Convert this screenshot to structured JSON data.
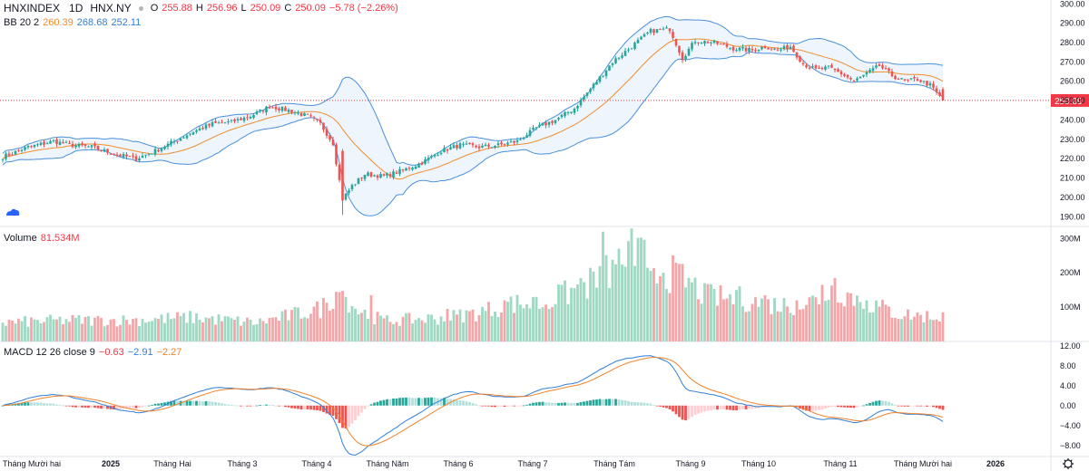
{
  "header": {
    "symbol": "HNXINDEX",
    "interval": "1D",
    "exchange": "HNX.NY",
    "o_label": "O",
    "o": "255.88",
    "h_label": "H",
    "h": "256.96",
    "l_label": "L",
    "l": "250.09",
    "c_label": "C",
    "c": "250.09",
    "change": "−5.78 (−2.26%)"
  },
  "bb_legend": {
    "name": "BB 20 2",
    "basis": "260.39",
    "upper": "268.68",
    "lower": "252.11"
  },
  "volume_legend": {
    "name": "Volume",
    "value": "81.534M"
  },
  "macd_legend": {
    "name": "MACD 12 26 close 9",
    "hist": "−0.63",
    "macd": "−2.91",
    "signal": "−2.27"
  },
  "last_price_label": "250.09",
  "colors": {
    "up": "#26a69a",
    "down": "#ef5350",
    "volume_up": "#9fd8c3",
    "volume_down": "#f5a5a8",
    "bb_band": "#4a90d9",
    "bb_basis": "#f08c2e",
    "macd": "#2f7fd8",
    "signal": "#f0822a",
    "last_price": "#f23645"
  },
  "chart_data": [
    {
      "type": "candlestick",
      "name": "HNXINDEX 1D",
      "ylim": [
        185,
        302
      ],
      "yticks": [
        "300.00",
        "290.00",
        "280.00",
        "270.00",
        "260.00",
        "250.00",
        "240.00",
        "230.00",
        "220.00",
        "210.00",
        "200.00",
        "190.00"
      ],
      "xticks": [
        "Tháng Mười hai",
        "2025",
        "Tháng Hai",
        "Tháng 3",
        "Tháng 4",
        "Tháng Năm",
        "Tháng 6",
        "Tháng 7",
        "Tháng Tám",
        "Tháng 9",
        "Tháng 10",
        "Tháng 11",
        "Tháng Mười hai",
        "2026"
      ],
      "anchors_close": [
        [
          0,
          221
        ],
        [
          8,
          226
        ],
        [
          16,
          229
        ],
        [
          22,
          227
        ],
        [
          28,
          226
        ],
        [
          36,
          222
        ],
        [
          42,
          220
        ],
        [
          48,
          224
        ],
        [
          54,
          229
        ],
        [
          60,
          234
        ],
        [
          66,
          238
        ],
        [
          72,
          239
        ],
        [
          78,
          242
        ],
        [
          84,
          247
        ],
        [
          90,
          245
        ],
        [
          96,
          242
        ],
        [
          100,
          238
        ],
        [
          104,
          228
        ],
        [
          107,
          199
        ],
        [
          110,
          206
        ],
        [
          114,
          212
        ],
        [
          120,
          211
        ],
        [
          126,
          214
        ],
        [
          132,
          218
        ],
        [
          138,
          224
        ],
        [
          144,
          227
        ],
        [
          150,
          226
        ],
        [
          156,
          227
        ],
        [
          162,
          229
        ],
        [
          168,
          236
        ],
        [
          174,
          240
        ],
        [
          180,
          246
        ],
        [
          186,
          258
        ],
        [
          192,
          270
        ],
        [
          198,
          278
        ],
        [
          204,
          286
        ],
        [
          210,
          287
        ],
        [
          214,
          272
        ],
        [
          218,
          281
        ],
        [
          224,
          280
        ],
        [
          230,
          277
        ],
        [
          236,
          276
        ],
        [
          240,
          278
        ],
        [
          244,
          276
        ],
        [
          248,
          278
        ],
        [
          252,
          269
        ],
        [
          256,
          266
        ],
        [
          260,
          267
        ],
        [
          264,
          264
        ],
        [
          268,
          260
        ],
        [
          272,
          264
        ],
        [
          276,
          268
        ],
        [
          280,
          263
        ],
        [
          284,
          260
        ],
        [
          288,
          261
        ],
        [
          292,
          258
        ],
        [
          296,
          250
        ]
      ],
      "bollinger": {
        "period": 20,
        "multiplier": 2
      }
    },
    {
      "type": "bar",
      "name": "Volume",
      "ylim": [
        0,
        330
      ],
      "yticks": [
        "300M",
        "200M",
        "100M"
      ],
      "anchors": [
        [
          0,
          55
        ],
        [
          20,
          62
        ],
        [
          40,
          62
        ],
        [
          60,
          70
        ],
        [
          80,
          55
        ],
        [
          100,
          95
        ],
        [
          106,
          150
        ],
        [
          112,
          90
        ],
        [
          120,
          60
        ],
        [
          140,
          70
        ],
        [
          150,
          85
        ],
        [
          160,
          110
        ],
        [
          170,
          110
        ],
        [
          180,
          150
        ],
        [
          186,
          175
        ],
        [
          192,
          210
        ],
        [
          198,
          260
        ],
        [
          204,
          230
        ],
        [
          210,
          200
        ],
        [
          216,
          170
        ],
        [
          222,
          130
        ],
        [
          232,
          125
        ],
        [
          240,
          110
        ],
        [
          248,
          105
        ],
        [
          256,
          120
        ],
        [
          262,
          155
        ],
        [
          270,
          120
        ],
        [
          282,
          80
        ],
        [
          296,
          70
        ]
      ],
      "spikes": [
        [
          105,
          145
        ],
        [
          108,
          130
        ],
        [
          116,
          135
        ],
        [
          140,
          95
        ],
        [
          158,
          120
        ],
        [
          168,
          130
        ],
        [
          176,
          165
        ],
        [
          182,
          185
        ],
        [
          189,
          320
        ],
        [
          193,
          225
        ],
        [
          199,
          220
        ],
        [
          203,
          215
        ],
        [
          207,
          190
        ],
        [
          221,
          170
        ],
        [
          231,
          150
        ],
        [
          240,
          135
        ],
        [
          250,
          120
        ],
        [
          258,
          165
        ],
        [
          262,
          185
        ],
        [
          272,
          120
        ],
        [
          296,
          85
        ]
      ]
    },
    {
      "type": "line",
      "name": "MACD 12 26 close 9",
      "ylim": [
        -9.5,
        12.5
      ],
      "yticks": [
        "12.00",
        "8.00",
        "4.00",
        "0.00",
        "−4.00",
        "−8.00"
      ],
      "series": [
        "MACD",
        "Signal",
        "Histogram"
      ]
    }
  ]
}
